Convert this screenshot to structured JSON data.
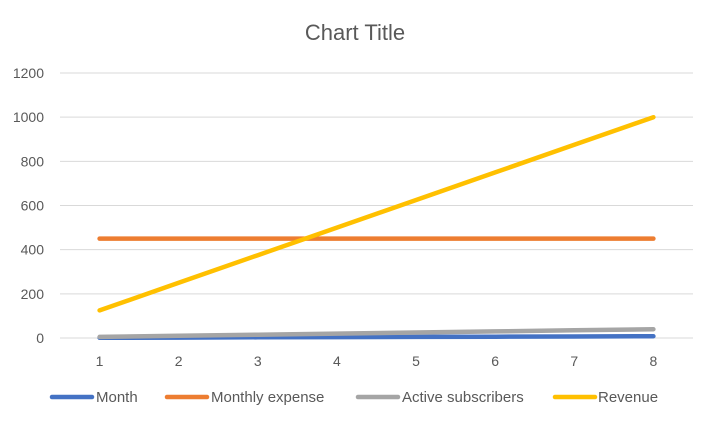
{
  "chart_data": {
    "type": "line",
    "title": "Chart Title",
    "xlabel": "",
    "ylabel": "",
    "x": [
      1,
      2,
      3,
      4,
      5,
      6,
      7,
      8
    ],
    "ylim": [
      0,
      1200
    ],
    "yticks": [
      0,
      200,
      400,
      600,
      800,
      1000,
      1200
    ],
    "grid": true,
    "legend_position": "bottom",
    "series": [
      {
        "name": "Month",
        "color": "#4472C4",
        "values": [
          1,
          2,
          3,
          4,
          5,
          6,
          7,
          8
        ]
      },
      {
        "name": "Monthly expense",
        "color": "#ED7D31",
        "values": [
          450,
          450,
          450,
          450,
          450,
          450,
          450,
          450
        ]
      },
      {
        "name": "Active subscribers",
        "color": "#A5A5A5",
        "values": [
          5,
          10,
          15,
          20,
          25,
          30,
          35,
          40
        ]
      },
      {
        "name": "Revenue",
        "color": "#FFC000",
        "values": [
          125,
          250,
          375,
          500,
          625,
          750,
          875,
          1000
        ]
      }
    ]
  }
}
